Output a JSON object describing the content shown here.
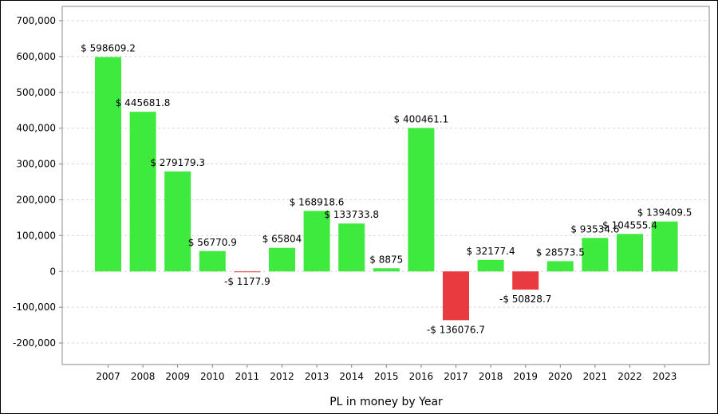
{
  "chart_data": {
    "type": "bar",
    "title": "",
    "xlabel": "PL in money by Year",
    "ylabel": "",
    "ylim": [
      -260000,
      740000
    ],
    "yticks": [
      -200000,
      -100000,
      0,
      100000,
      200000,
      300000,
      400000,
      500000,
      600000,
      700000
    ],
    "ytick_labels": [
      "-200,000",
      "-100,000",
      "0",
      "100,000",
      "200,000",
      "300,000",
      "400,000",
      "500,000",
      "600,000",
      "700,000"
    ],
    "grid": true,
    "categories": [
      "2007",
      "2008",
      "2009",
      "2010",
      "2011",
      "2012",
      "2013",
      "2014",
      "2015",
      "2016",
      "2017",
      "2018",
      "2019",
      "2020",
      "2021",
      "2022",
      "2023"
    ],
    "values": [
      598609.2,
      445681.8,
      279179.3,
      56770.9,
      -1177.9,
      65804,
      168918.6,
      133733.8,
      8875,
      400461.1,
      -136076.7,
      32177.4,
      -50828.7,
      28573.5,
      93534.6,
      104555.4,
      139409.5
    ],
    "data_labels": [
      "$ 598609.2",
      "$ 445681.8",
      "$ 279179.3",
      "$ 56770.9",
      "-$ 1177.9",
      "$ 65804",
      "$ 168918.6",
      "$ 133733.8",
      "$ 8875",
      "$ 400461.1",
      "-$ 136076.7",
      "$ 32177.4",
      "-$ 50828.7",
      "$ 28573.5",
      "$ 93534.6",
      "$ 104555.4",
      "$ 139409.5"
    ],
    "colors": {
      "positive": "#3eea3e",
      "negative": "#e83a3f",
      "grid": "#d8d8d8",
      "axis": "#888888"
    }
  }
}
